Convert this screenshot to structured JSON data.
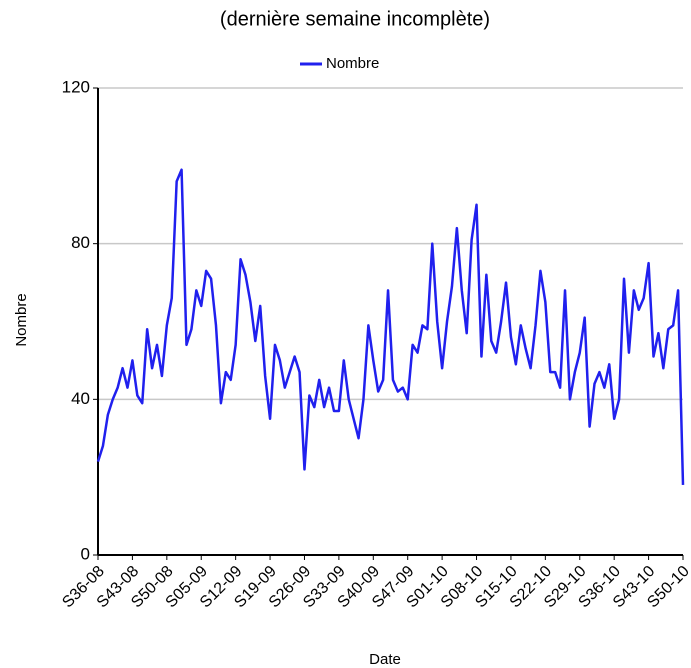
{
  "chart_data": {
    "type": "line",
    "title": "(dernière semaine incomplète)",
    "x_label": "Date",
    "y_label": "Nombre",
    "categories": [
      "S36-08",
      null,
      null,
      null,
      null,
      null,
      null,
      "S43-08",
      null,
      null,
      null,
      null,
      null,
      null,
      "S50-08",
      null,
      null,
      null,
      null,
      null,
      null,
      "S05-09",
      null,
      null,
      null,
      null,
      null,
      null,
      "S12-09",
      null,
      null,
      null,
      null,
      null,
      null,
      "S19-09",
      null,
      null,
      null,
      null,
      null,
      null,
      "S26-09",
      null,
      null,
      null,
      null,
      null,
      null,
      "S33-09",
      null,
      null,
      null,
      null,
      null,
      null,
      "S40-09",
      null,
      null,
      null,
      null,
      null,
      null,
      "S47-09",
      null,
      null,
      null,
      null,
      null,
      null,
      "S01-10",
      null,
      null,
      null,
      null,
      null,
      null,
      "S08-10",
      null,
      null,
      null,
      null,
      null,
      null,
      "S15-10",
      null,
      null,
      null,
      null,
      null,
      null,
      "S22-10",
      null,
      null,
      null,
      null,
      null,
      null,
      "S29-10",
      null,
      null,
      null,
      null,
      null,
      null,
      "S36-10",
      null,
      null,
      null,
      null,
      null,
      null,
      "S43-10",
      null,
      null,
      null,
      null,
      null,
      null,
      "S50-10"
    ],
    "series": [
      {
        "name": "Nombre",
        "color": "#2020ee",
        "values": [
          24,
          28,
          36,
          40,
          43,
          48,
          43,
          50,
          41,
          39,
          58,
          48,
          54,
          46,
          59,
          66,
          96,
          99,
          54,
          58,
          68,
          64,
          73,
          71,
          59,
          39,
          47,
          45,
          54,
          76,
          72,
          65,
          55,
          64,
          46,
          35,
          54,
          50,
          43,
          47,
          51,
          47,
          22,
          41,
          38,
          45,
          38,
          43,
          37,
          37,
          50,
          40,
          35,
          30,
          40,
          59,
          50,
          42,
          45,
          68,
          45,
          42,
          43,
          40,
          54,
          52,
          59,
          58,
          80,
          60,
          48,
          60,
          69,
          84,
          68,
          57,
          81,
          90,
          51,
          72,
          55,
          52,
          60,
          70,
          56,
          49,
          59,
          53,
          48,
          59,
          73,
          65,
          47,
          47,
          43,
          68,
          40,
          47,
          52,
          61,
          33,
          44,
          47,
          43,
          49,
          35,
          40,
          71,
          52,
          68,
          63,
          66,
          75,
          51,
          57,
          48,
          58,
          59,
          68,
          18
        ]
      }
    ],
    "ylim": [
      0,
      120
    ],
    "yticks": [
      0,
      40,
      80,
      120
    ],
    "grid": true,
    "legend": "top"
  }
}
